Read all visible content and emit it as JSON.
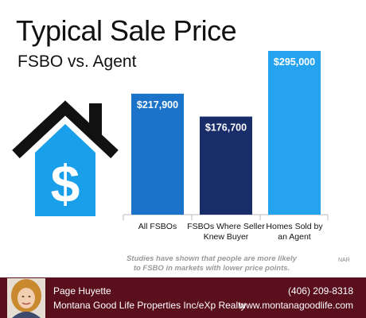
{
  "header": {
    "title": "Typical Sale Price",
    "subtitle": "FSBO vs. Agent"
  },
  "chart_data": {
    "type": "bar",
    "title": "Typical Sale Price",
    "subtitle": "FSBO vs. Agent",
    "categories": [
      "All FSBOs",
      "FSBOs Where Seller Knew Buyer",
      "Homes Sold by an Agent"
    ],
    "category_lines": [
      [
        "All FSBOs"
      ],
      [
        "FSBOs Where Seller",
        "Knew Buyer"
      ],
      [
        "Homes Sold by",
        "an Agent"
      ]
    ],
    "values": [
      217900,
      176700,
      295000
    ],
    "value_labels": [
      "$217,900",
      "$176,700",
      "$295,000"
    ],
    "colors": [
      "#1a73c9",
      "#1a2d6b",
      "#26a3ee"
    ],
    "ylim": [
      0,
      295000
    ],
    "grid": false,
    "legend": "none"
  },
  "note": {
    "line1": "Studies have shown that people are more likely",
    "line2": "to FSBO in markets with lower price points."
  },
  "source": "NAR",
  "icon": {
    "name": "house-dollar-icon",
    "roof_color": "#111111",
    "body_color": "#1aa0ea",
    "symbol": "$"
  },
  "footer": {
    "name": "Page Huyette",
    "company": "Montana Good Life Properties Inc/eXp Realty",
    "phone": "(406) 209-8318",
    "website": "www.montanagoodlife.com",
    "background": "#5a0f1d"
  }
}
